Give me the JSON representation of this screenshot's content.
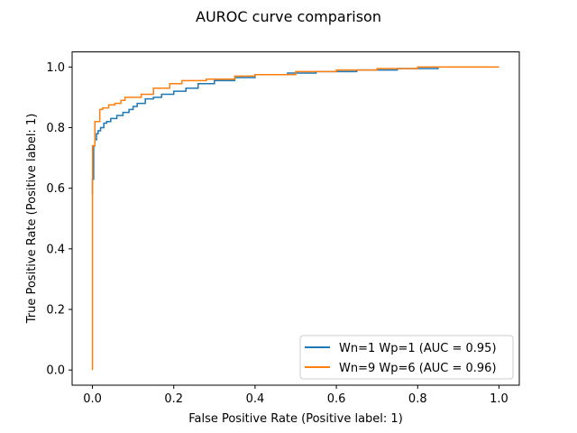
{
  "chart_data": {
    "type": "line",
    "title": "AUROC curve comparison",
    "xlabel": "False Positive Rate (Positive label: 1)",
    "ylabel": "True Positive Rate (Positive label: 1)",
    "xlim": [
      -0.05,
      1.05
    ],
    "ylim": [
      -0.05,
      1.05
    ],
    "xticks": [
      "0.0",
      "0.2",
      "0.4",
      "0.6",
      "0.8",
      "1.0"
    ],
    "yticks": [
      "0.0",
      "0.2",
      "0.4",
      "0.6",
      "0.8",
      "1.0"
    ],
    "grid": false,
    "legend_position": "lower-right",
    "series": [
      {
        "name": "Wn=1 Wp=1 (AUC = 0.95)",
        "color": "#1f77b4",
        "x": [
          0.0,
          0.0,
          0.003,
          0.003,
          0.006,
          0.006,
          0.01,
          0.01,
          0.014,
          0.014,
          0.02,
          0.02,
          0.028,
          0.028,
          0.035,
          0.035,
          0.045,
          0.045,
          0.06,
          0.06,
          0.075,
          0.075,
          0.09,
          0.09,
          0.1,
          0.1,
          0.11,
          0.11,
          0.13,
          0.13,
          0.15,
          0.15,
          0.17,
          0.17,
          0.2,
          0.2,
          0.23,
          0.23,
          0.26,
          0.26,
          0.3,
          0.3,
          0.35,
          0.35,
          0.4,
          0.4,
          0.48,
          0.48,
          0.55,
          0.55,
          0.65,
          0.65,
          0.75,
          0.75,
          0.85,
          0.85,
          1.0
        ],
        "y": [
          0.58,
          0.63,
          0.63,
          0.74,
          0.74,
          0.76,
          0.76,
          0.78,
          0.78,
          0.79,
          0.79,
          0.8,
          0.8,
          0.815,
          0.815,
          0.82,
          0.82,
          0.83,
          0.83,
          0.84,
          0.84,
          0.85,
          0.85,
          0.86,
          0.86,
          0.87,
          0.87,
          0.88,
          0.88,
          0.895,
          0.895,
          0.9,
          0.9,
          0.91,
          0.91,
          0.92,
          0.92,
          0.93,
          0.93,
          0.945,
          0.945,
          0.955,
          0.955,
          0.965,
          0.965,
          0.975,
          0.975,
          0.98,
          0.98,
          0.985,
          0.985,
          0.99,
          0.99,
          0.995,
          0.995,
          1.0,
          1.0
        ]
      },
      {
        "name": "Wn=9 Wp=6 (AUC = 0.96)",
        "color": "#ff7f0e",
        "x": [
          0.0,
          0.0,
          0.006,
          0.006,
          0.018,
          0.018,
          0.025,
          0.025,
          0.04,
          0.04,
          0.055,
          0.055,
          0.07,
          0.07,
          0.08,
          0.08,
          0.12,
          0.12,
          0.15,
          0.15,
          0.19,
          0.19,
          0.22,
          0.22,
          0.28,
          0.28,
          0.35,
          0.35,
          0.4,
          0.4,
          0.5,
          0.5,
          0.6,
          0.6,
          0.7,
          0.7,
          0.8,
          0.8,
          1.0
        ],
        "y": [
          0.0,
          0.74,
          0.74,
          0.82,
          0.82,
          0.86,
          0.86,
          0.865,
          0.865,
          0.875,
          0.875,
          0.88,
          0.88,
          0.89,
          0.89,
          0.9,
          0.9,
          0.91,
          0.91,
          0.93,
          0.93,
          0.945,
          0.945,
          0.955,
          0.955,
          0.96,
          0.96,
          0.97,
          0.97,
          0.975,
          0.975,
          0.985,
          0.985,
          0.99,
          0.99,
          0.995,
          0.995,
          1.0,
          1.0
        ]
      }
    ]
  }
}
